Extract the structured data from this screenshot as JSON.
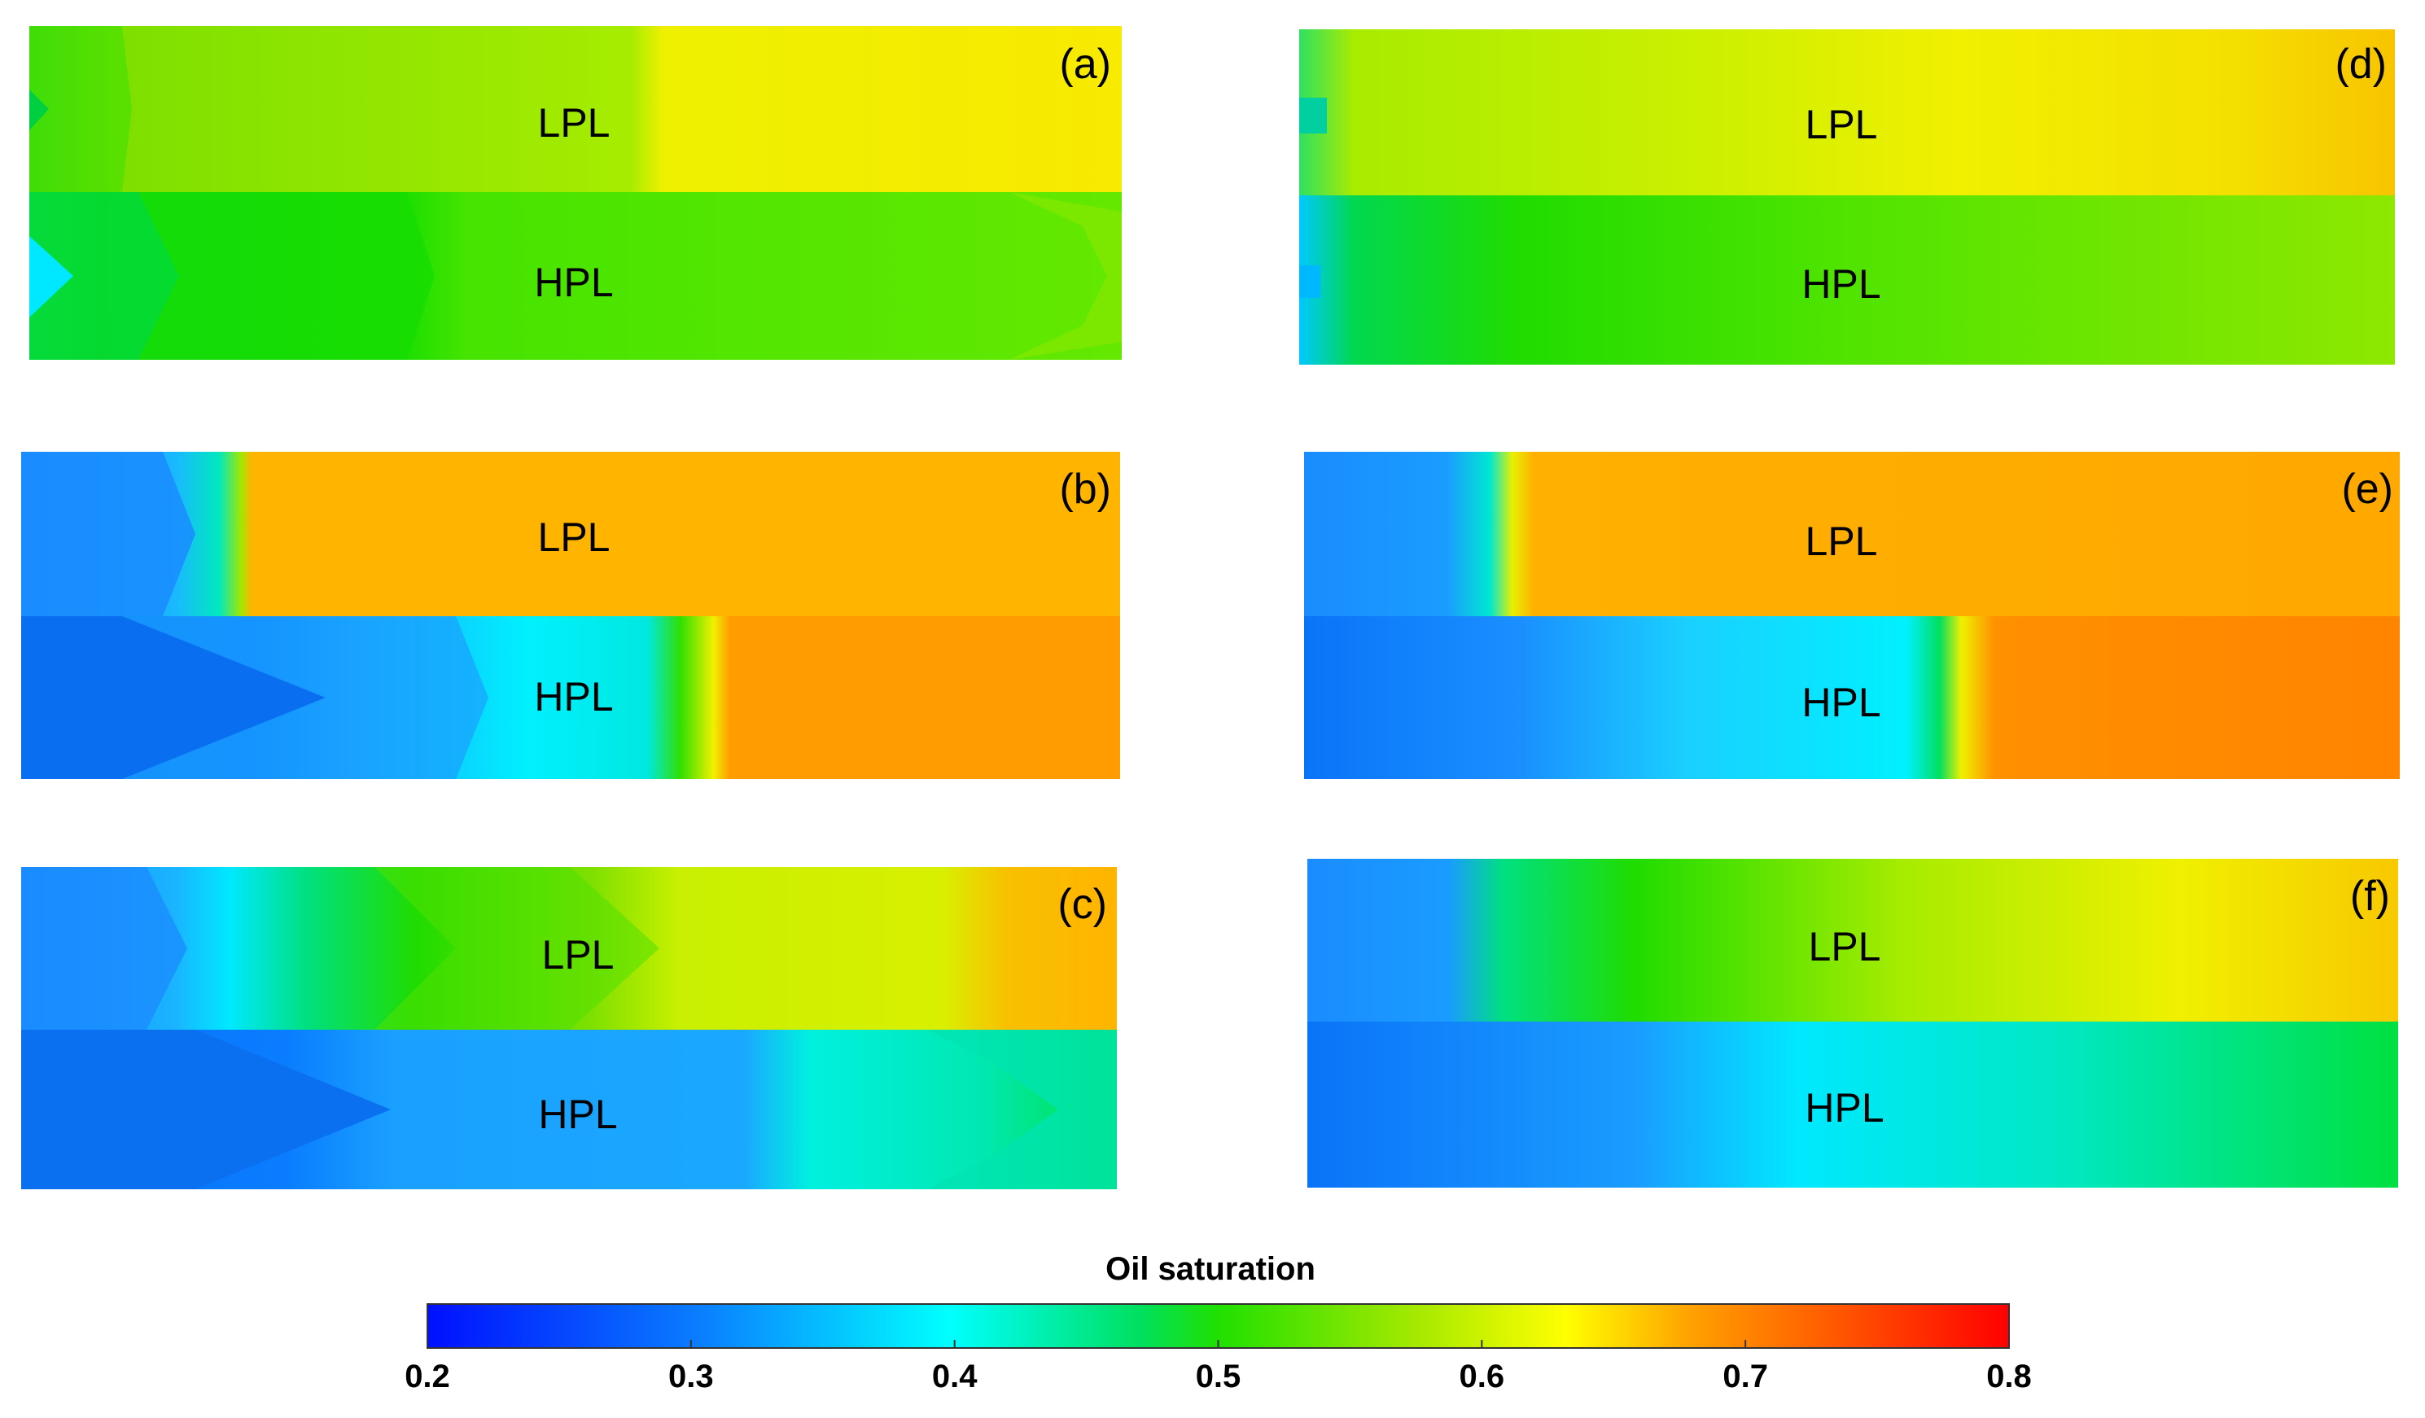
{
  "figure": {
    "panels": [
      {
        "id": "a",
        "tag": "(a)",
        "top_label": "LPL",
        "bottom_label": "HPL"
      },
      {
        "id": "b",
        "tag": "(b)",
        "top_label": "LPL",
        "bottom_label": "HPL"
      },
      {
        "id": "c",
        "tag": "(c)",
        "top_label": "LPL",
        "bottom_label": "HPL"
      },
      {
        "id": "d",
        "tag": "(d)",
        "top_label": "LPL",
        "bottom_label": "HPL"
      },
      {
        "id": "e",
        "tag": "(e)",
        "top_label": "LPL",
        "bottom_label": "HPL"
      },
      {
        "id": "f",
        "tag": "(f)",
        "top_label": "LPL",
        "bottom_label": "HPL"
      }
    ],
    "colorbar": {
      "title": "Oil saturation",
      "min": 0.2,
      "max": 0.8,
      "ticks": [
        "0.2",
        "0.3",
        "0.4",
        "0.5",
        "0.6",
        "0.7",
        "0.8"
      ],
      "colormap": [
        "#0010ff",
        "#0a7cff",
        "#00ffff",
        "#00e060",
        "#40e000",
        "#ffff00",
        "#ffa000",
        "#ff0000"
      ]
    },
    "colors": {
      "cool_blue": "#0a7cff",
      "light_blue": "#1a9cff",
      "cyan": "#00e8ff",
      "green": "#2ee000",
      "light_green": "#7ee000",
      "yellow_green": "#c8f000",
      "yellow": "#f5f000",
      "orange": "#ffb400",
      "dark_orange": "#ff9000"
    }
  }
}
